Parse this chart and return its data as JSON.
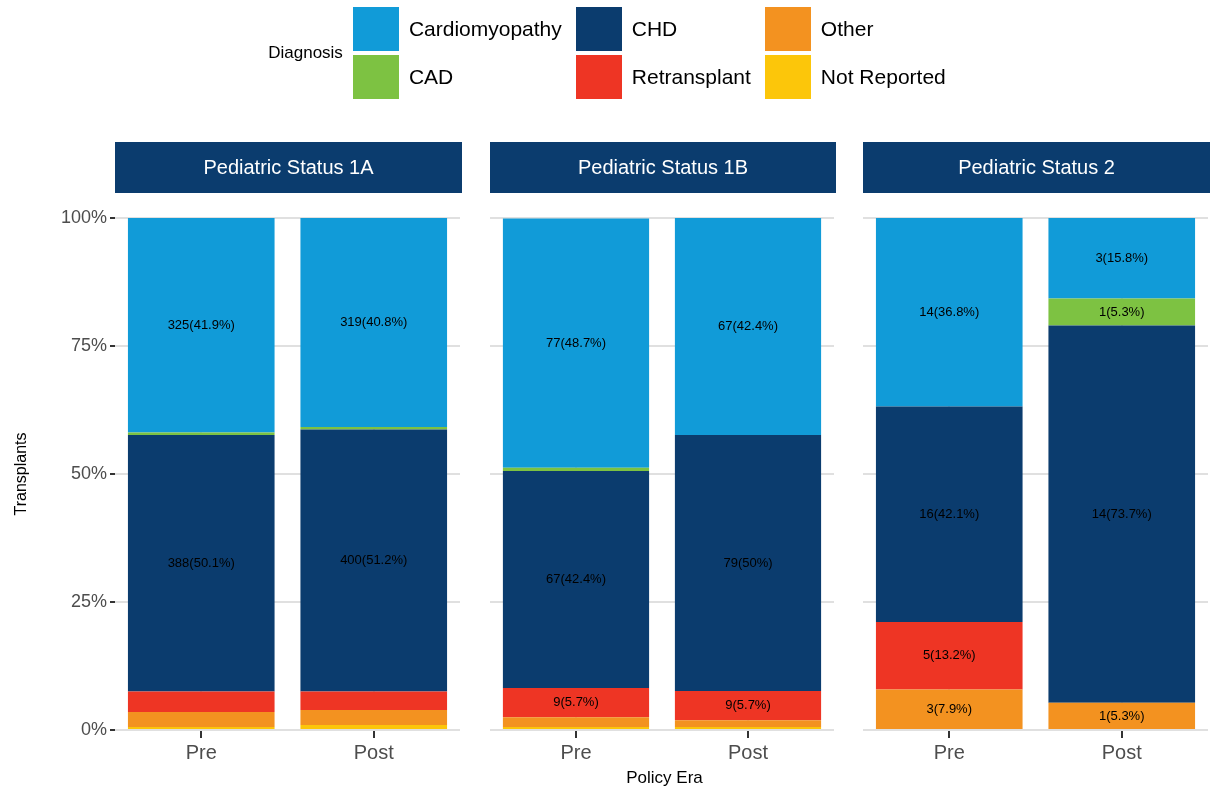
{
  "chart_data": [
    {
      "type": "bar",
      "stacked": true,
      "title": "Pediatric Status 1A",
      "ylabel": "Transplants",
      "legend": "top",
      "legend_title": "Diagnosis",
      "grid": true,
      "categories": [
        "Pre",
        "Post"
      ],
      "ylim": [
        0,
        100
      ],
      "yticks": [
        {
          "value": 0,
          "label": "0%"
        },
        {
          "value": 25,
          "label": "25%"
        },
        {
          "value": 50,
          "label": "50%"
        },
        {
          "value": 75,
          "label": "75%"
        },
        {
          "value": 100,
          "label": "100%"
        }
      ],
      "series": [
        {
          "name": "Not Reported",
          "color": "#fcc60a",
          "values": [
            0.6,
            1.0
          ],
          "value_labels": [
            null,
            null
          ]
        },
        {
          "name": "Other",
          "color": "#f39220",
          "values": [
            2.9,
            2.9
          ],
          "value_labels": [
            null,
            null
          ]
        },
        {
          "name": "Retransplant",
          "color": "#ee3524",
          "values": [
            4.0,
            3.6
          ],
          "value_labels": [
            null,
            null
          ]
        },
        {
          "name": "CHD",
          "color": "#0b3c6e",
          "values": [
            50.1,
            51.2
          ],
          "value_labels": [
            "388(50.1%)",
            "400(51.2%)"
          ]
        },
        {
          "name": "CAD",
          "color": "#7dc242",
          "values": [
            0.5,
            0.5
          ],
          "value_labels": [
            null,
            null
          ]
        },
        {
          "name": "Cardiomyopathy",
          "color": "#119bd8",
          "values": [
            41.9,
            40.8
          ],
          "value_labels": [
            "325(41.9%)",
            "319(40.8%)"
          ]
        }
      ]
    },
    {
      "type": "bar",
      "stacked": true,
      "title": "Pediatric Status 1B",
      "xlabel": "Policy Era",
      "grid": true,
      "tick_labels": "x",
      "categories": [
        "Pre",
        "Post"
      ],
      "ylim": [
        0,
        100
      ],
      "yticks": [
        {
          "value": 0,
          "label": null
        },
        {
          "value": 25,
          "label": null
        },
        {
          "value": 50,
          "label": null
        },
        {
          "value": 75,
          "label": null
        },
        {
          "value": 100,
          "label": null
        }
      ],
      "series": [
        {
          "color": "#fcc60a",
          "values": [
            0.6,
            0.6
          ],
          "value_labels": [
            null,
            null
          ]
        },
        {
          "color": "#f39220",
          "values": [
            1.9,
            1.3
          ],
          "value_labels": [
            null,
            null
          ]
        },
        {
          "color": "#ee3524",
          "values": [
            5.7,
            5.7
          ],
          "value_labels": [
            "9(5.7%)",
            "9(5.7%)"
          ]
        },
        {
          "color": "#0b3c6e",
          "values": [
            42.4,
            50
          ],
          "value_labels": [
            "67(42.4%)",
            "79(50%)"
          ]
        },
        {
          "color": "#7dc242",
          "values": [
            0.6,
            0
          ],
          "value_labels": [
            null,
            null
          ]
        },
        {
          "color": "#119bd8",
          "values": [
            48.7,
            42.4
          ],
          "value_labels": [
            "77(48.7%)",
            "67(42.4%)"
          ]
        }
      ]
    },
    {
      "type": "bar",
      "stacked": true,
      "title": "Pediatric Status 2",
      "grid": true,
      "tick_labels": "x",
      "categories": [
        "Pre",
        "Post"
      ],
      "ylim": [
        0,
        100
      ],
      "yticks": [
        {
          "value": 0,
          "label": null
        },
        {
          "value": 25,
          "label": null
        },
        {
          "value": 50,
          "label": null
        },
        {
          "value": 75,
          "label": null
        },
        {
          "value": 100,
          "label": null
        }
      ],
      "series": [
        {
          "color": "#fcc60a",
          "values": [
            0,
            0
          ],
          "value_labels": [
            null,
            null
          ]
        },
        {
          "color": "#f39220",
          "values": [
            7.9,
            5.3
          ],
          "value_labels": [
            "3(7.9%)",
            "1(5.3%)"
          ]
        },
        {
          "color": "#ee3524",
          "values": [
            13.2,
            0
          ],
          "value_labels": [
            "5(13.2%)",
            null
          ]
        },
        {
          "color": "#0b3c6e",
          "values": [
            42.1,
            73.7
          ],
          "value_labels": [
            "16(42.1%)",
            "14(73.7%)"
          ]
        },
        {
          "color": "#7dc242",
          "values": [
            0,
            5.3
          ],
          "value_labels": [
            null,
            "1(5.3%)"
          ]
        },
        {
          "color": "#119bd8",
          "values": [
            36.8,
            15.8
          ],
          "value_labels": [
            "14(36.8%)",
            "3(15.8%)"
          ]
        }
      ]
    }
  ]
}
